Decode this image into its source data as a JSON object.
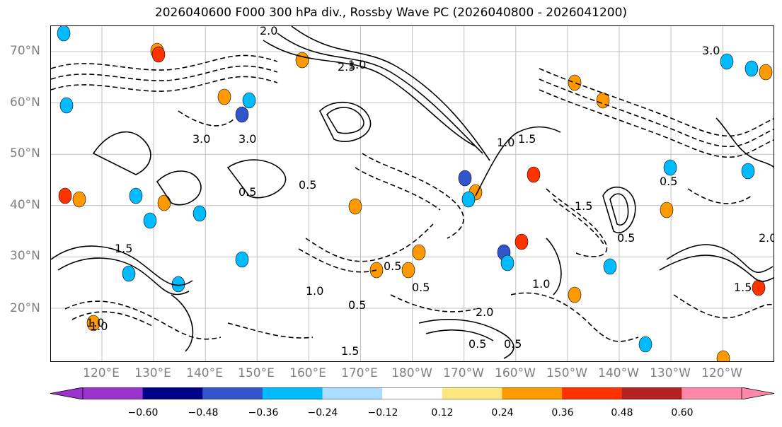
{
  "title": "2026040600 F000 300 hPa div., Rossby Wave PC (2026040800 - 2026041200)",
  "lat_labels": [
    "70°N",
    "60°N",
    "50°N",
    "40°N",
    "30°N",
    "20°N"
  ],
  "lon_labels": [
    "120°E",
    "130°E",
    "140°E",
    "150°E",
    "160°E",
    "170°E",
    "180°W",
    "170°W",
    "160°W",
    "150°W",
    "140°W",
    "130°W",
    "120°W"
  ],
  "contour_labels": [
    "2.0",
    "2.5",
    "3.0",
    "1.0",
    "0.5",
    "1.5",
    "0.5",
    "3.0",
    "1.0",
    "2.0",
    "1.5",
    "0.5",
    "0.5",
    "1.0",
    "1.0",
    "1.5",
    "0.5",
    "2.0",
    "0.5",
    "1.5",
    "3.0",
    "0.5",
    "1.0",
    "0.5",
    "1.0",
    "0.5",
    "1.5"
  ],
  "colorbar": {
    "colors": [
      "#9933cc",
      "#000088",
      "#3355cc",
      "#00bbff",
      "#aaddff",
      "#ffffff",
      "#ffe680",
      "#ff9900",
      "#ff3300",
      "#b22222",
      "#ff88aa"
    ],
    "tick_labels": [
      "−0.60",
      "−0.48",
      "−0.36",
      "−0.24",
      "−0.12",
      "0.12",
      "0.24",
      "0.36",
      "0.48",
      "0.60"
    ]
  }
}
